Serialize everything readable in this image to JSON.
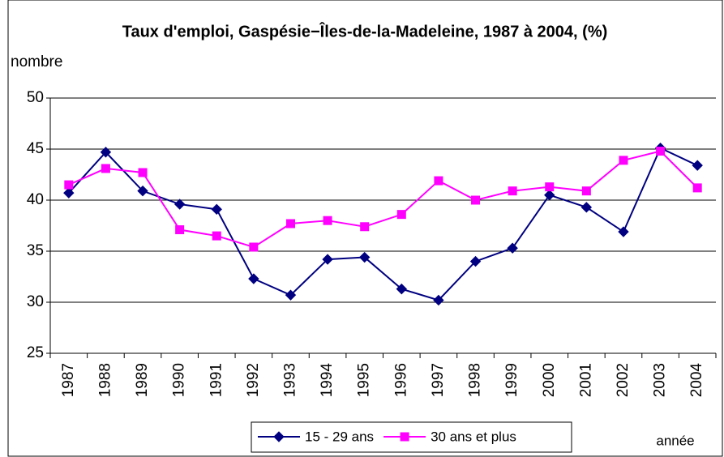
{
  "chart_data": {
    "type": "line",
    "title": "Taux d'emploi, Gaspésie−Îles-de-la-Madeleine, 1987 à 2004, (%)",
    "y_label": "nombre",
    "x_label": "année",
    "categories": [
      "1987",
      "1988",
      "1989",
      "1990",
      "1991",
      "1992",
      "1993",
      "1994",
      "1995",
      "1996",
      "1997",
      "1998",
      "1999",
      "2000",
      "2001",
      "2002",
      "2003",
      "2004"
    ],
    "series": [
      {
        "name": "15 - 29 ans",
        "color": "#000080",
        "marker": "diamond",
        "values": [
          40.7,
          44.7,
          40.9,
          39.6,
          39.1,
          32.3,
          30.7,
          34.2,
          34.4,
          31.3,
          30.2,
          34.0,
          35.3,
          40.5,
          39.3,
          36.9,
          45.1,
          43.4
        ]
      },
      {
        "name": "30 ans et plus",
        "color": "#ff00ff",
        "marker": "square",
        "values": [
          41.5,
          43.1,
          42.7,
          37.1,
          36.5,
          35.4,
          37.7,
          38.0,
          37.4,
          38.6,
          41.9,
          40.0,
          40.9,
          41.3,
          40.9,
          43.9,
          44.8,
          41.2
        ]
      }
    ],
    "ylim": [
      25,
      50
    ],
    "yticks": [
      25,
      30,
      35,
      40,
      45,
      50
    ],
    "grid": true,
    "legend": "bottom"
  }
}
